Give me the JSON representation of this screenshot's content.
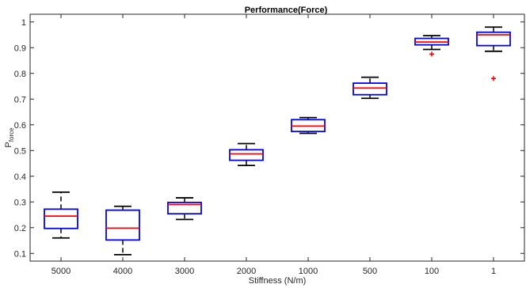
{
  "chart_data": {
    "type": "boxplot",
    "title": "Performance(Force)",
    "xlabel": "Stiffness (N/m)",
    "ylabel": "P",
    "ylabel_subscript": "force",
    "ylim": [
      0.07,
      1.03
    ],
    "yticks": [
      0.1,
      0.2,
      0.3,
      0.4,
      0.5,
      0.6,
      0.7,
      0.8,
      0.9,
      1
    ],
    "ytick_labels": [
      "0.1",
      "0.2",
      "0.3",
      "0.4",
      "0.5",
      "0.6",
      "0.7",
      "0.8",
      "0.9",
      "1"
    ],
    "grid": false,
    "categories": [
      "5000",
      "4000",
      "3000",
      "2000",
      "1000",
      "500",
      "100",
      "1"
    ],
    "boxes": [
      {
        "whisker_low": 0.16,
        "q1": 0.197,
        "median": 0.245,
        "q3": 0.272,
        "whisker_high": 0.338,
        "outliers": []
      },
      {
        "whisker_low": 0.095,
        "q1": 0.152,
        "median": 0.198,
        "q3": 0.268,
        "whisker_high": 0.283,
        "outliers": []
      },
      {
        "whisker_low": 0.232,
        "q1": 0.254,
        "median": 0.29,
        "q3": 0.298,
        "whisker_high": 0.316,
        "outliers": []
      },
      {
        "whisker_low": 0.442,
        "q1": 0.462,
        "median": 0.487,
        "q3": 0.503,
        "whisker_high": 0.527,
        "outliers": []
      },
      {
        "whisker_low": 0.567,
        "q1": 0.574,
        "median": 0.595,
        "q3": 0.62,
        "whisker_high": 0.628,
        "outliers": []
      },
      {
        "whisker_low": 0.703,
        "q1": 0.717,
        "median": 0.743,
        "q3": 0.762,
        "whisker_high": 0.785,
        "outliers": []
      },
      {
        "whisker_low": 0.893,
        "q1": 0.911,
        "median": 0.922,
        "q3": 0.936,
        "whisker_high": 0.947,
        "outliers": [
          0.875
        ]
      },
      {
        "whisker_low": 0.886,
        "q1": 0.908,
        "median": 0.95,
        "q3": 0.96,
        "whisker_high": 0.98,
        "outliers": [
          0.78
        ]
      }
    ],
    "colors": {
      "box": "#0000ff",
      "median": "#ff0000",
      "whisker": "#000000",
      "outlier": "#ff0000",
      "axis": "#262626"
    }
  }
}
